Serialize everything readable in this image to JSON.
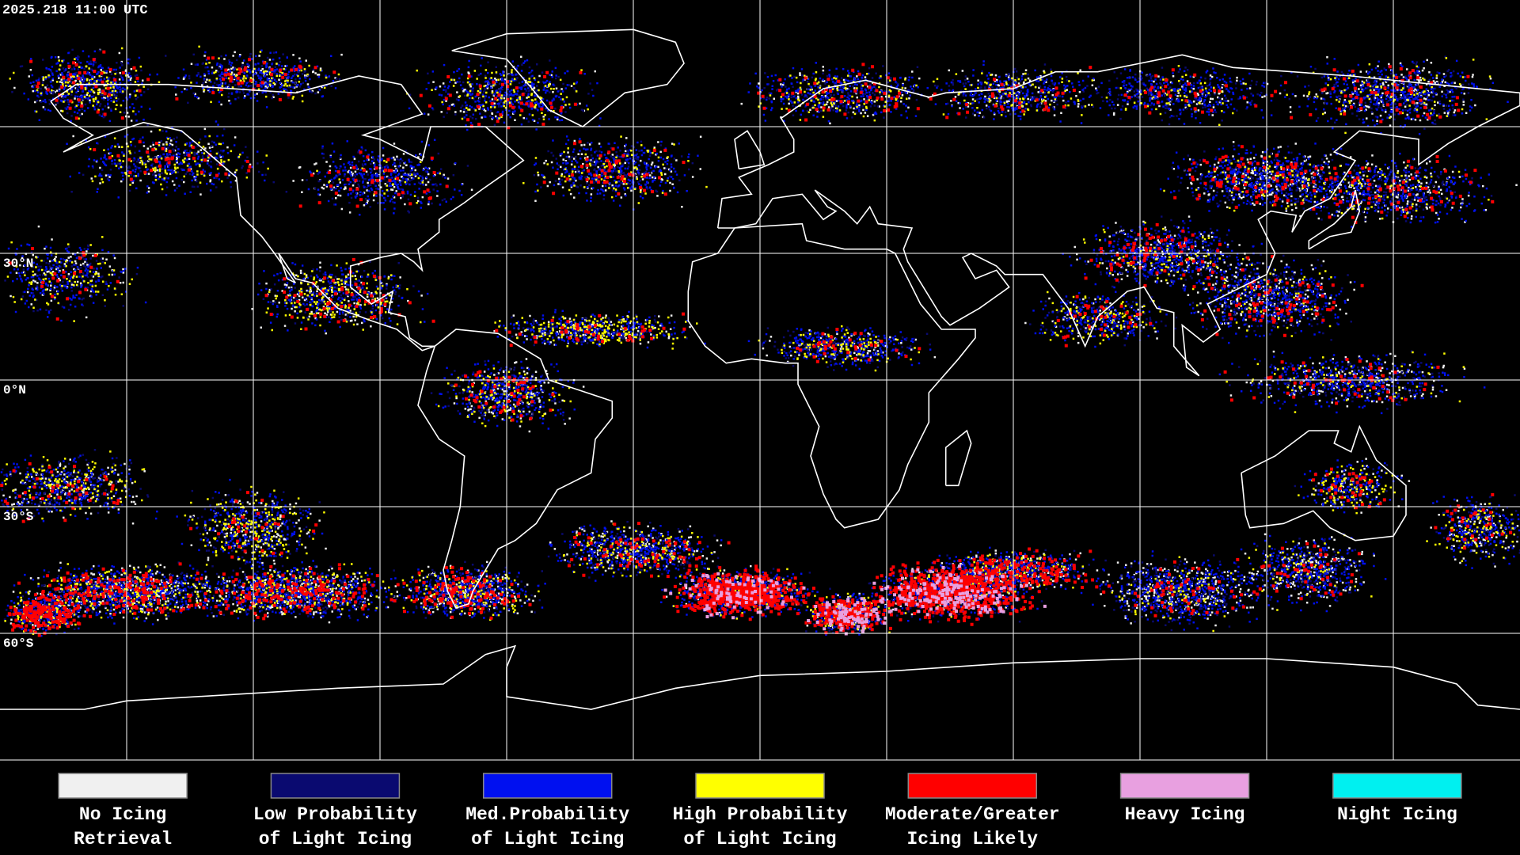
{
  "header": {
    "timestamp": "2025.218 11:00 UTC"
  },
  "map": {
    "latitude_labels": [
      "30°N",
      "0°N",
      "30°S",
      "60°S"
    ]
  },
  "legend": {
    "items": [
      {
        "color": "#f0f0f0",
        "label": [
          "No Icing",
          "Retrieval"
        ]
      },
      {
        "color": "#0a0a70",
        "label": [
          "Low Probability",
          "of Light Icing"
        ]
      },
      {
        "color": "#0010f0",
        "label": [
          "Med.Probability",
          "of Light Icing"
        ]
      },
      {
        "color": "#ffff00",
        "label": [
          "High Probability",
          "of Light Icing"
        ]
      },
      {
        "color": "#ff0000",
        "label": [
          "Moderate/Greater",
          "Icing Likely"
        ]
      },
      {
        "color": "#e8a0e0",
        "label": [
          "Heavy Icing"
        ]
      },
      {
        "color": "#00f0f0",
        "label": [
          "Night Icing"
        ]
      }
    ]
  }
}
